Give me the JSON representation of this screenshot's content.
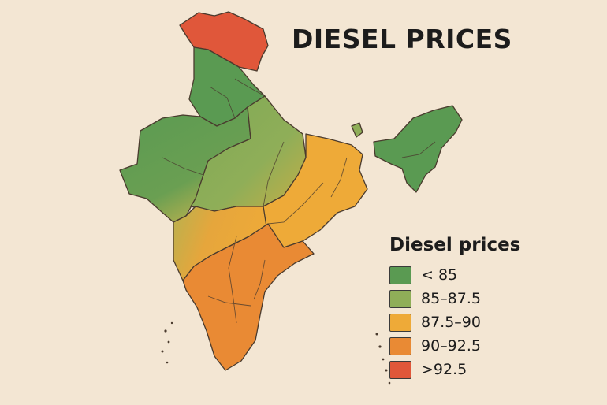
{
  "title": "DIESEL PRICES",
  "legend": {
    "title": "Diesel prices",
    "items": [
      {
        "label": "< 85",
        "color": "#5a9a52"
      },
      {
        "label": "85–87.5",
        "color": "#8fae58"
      },
      {
        "label": "87.5–90",
        "color": "#eeaa38"
      },
      {
        "label": "90–92.5",
        "color": "#e98a34"
      },
      {
        "label": ">92.5",
        "color": "#e0573a"
      }
    ]
  }
}
